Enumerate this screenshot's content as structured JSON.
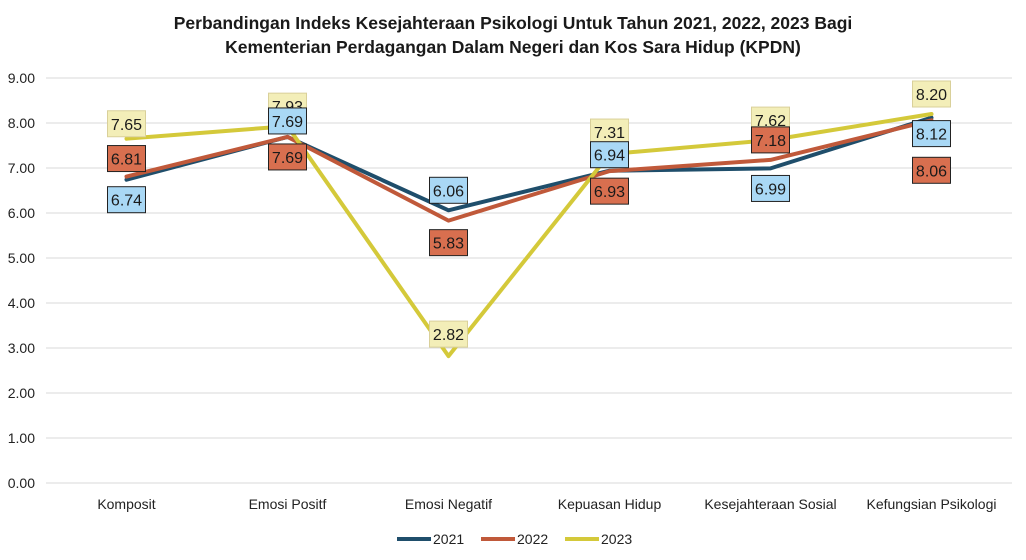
{
  "chart_data": {
    "type": "line",
    "title": "Perbandingan Indeks Kesejahteraan Psikologi Untuk Tahun 2021, 2022, 2023 Bagi",
    "subtitle": "Kementerian Perdagangan Dalam Negeri dan Kos Sara Hidup (KPDN)",
    "categories": [
      "Komposit",
      "Emosi Positf",
      "Emosi Negatif",
      "Kepuasan Hidup",
      "Kesejahteraan Sosial",
      "Kefungsian Psikologi"
    ],
    "ylim": [
      0,
      9
    ],
    "yticks": [
      "0.00",
      "1.00",
      "2.00",
      "3.00",
      "4.00",
      "5.00",
      "6.00",
      "7.00",
      "8.00",
      "9.00"
    ],
    "grid": true,
    "legend_position": "bottom",
    "series": [
      {
        "name": "2021",
        "values": [
          6.74,
          7.69,
          6.06,
          6.94,
          6.99,
          8.12
        ],
        "labels": [
          "6.74",
          "7.69",
          "6.06",
          "6.94",
          "6.99",
          "8.12"
        ],
        "color": "#1f4e6b",
        "label_fill": "#a9d8f5"
      },
      {
        "name": "2022",
        "values": [
          6.81,
          7.69,
          5.83,
          6.93,
          7.18,
          8.06
        ],
        "labels": [
          "6.81",
          "7.69",
          "5.83",
          "6.93",
          "7.18",
          "8.06"
        ],
        "color": "#c0593a",
        "label_fill": "#d86f4f"
      },
      {
        "name": "2023",
        "values": [
          7.65,
          7.93,
          2.82,
          7.31,
          7.62,
          8.2
        ],
        "labels": [
          "7.65",
          "7.93",
          "2.82",
          "7.31",
          "7.62",
          "8.20"
        ],
        "color": "#d4c93a",
        "label_fill": "#f3eeb8"
      }
    ]
  }
}
